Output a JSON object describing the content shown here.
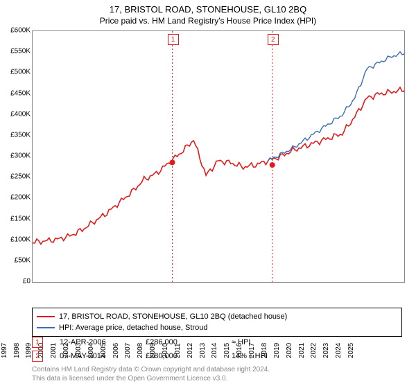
{
  "title": "17, BRISTOL ROAD, STONEHOUSE, GL10 2BQ",
  "subtitle": "Price paid vs. HM Land Registry's House Price Index (HPI)",
  "chart": {
    "type": "line",
    "background_color": "#ffffff",
    "border_color": "#888888",
    "x_categories": [
      "1995",
      "1996",
      "1997",
      "1998",
      "1999",
      "2000",
      "2001",
      "2002",
      "2003",
      "2004",
      "2005",
      "2006",
      "2007",
      "2008",
      "2009",
      "2010",
      "2011",
      "2012",
      "2013",
      "2014",
      "2015",
      "2016",
      "2017",
      "2018",
      "2019",
      "2020",
      "2021",
      "2022",
      "2023",
      "2024",
      "2025"
    ],
    "ylim": [
      0,
      600000
    ],
    "ytick_step": 50000,
    "ytick_labels": [
      "£0",
      "£50K",
      "£100K",
      "£150K",
      "£200K",
      "£250K",
      "£300K",
      "£350K",
      "£400K",
      "£450K",
      "£500K",
      "£550K",
      "£600K"
    ],
    "label_fontsize": 10,
    "title_fontsize": 13,
    "series": [
      {
        "name": "17, BRISTOL ROAD, STONEHOUSE, GL10 2BQ (detached house)",
        "color": "#e31a1c",
        "line_width": 1.6,
        "data_yearly": [
          95,
          98,
          102,
          110,
          125,
          145,
          165,
          190,
          215,
          245,
          260,
          285,
          310,
          340,
          255,
          290,
          285,
          275,
          280,
          290,
          300,
          315,
          325,
          335,
          345,
          355,
          395,
          440,
          450,
          455,
          460
        ]
      },
      {
        "name": "HPI: Average price, detached house, Stroud",
        "color": "#3b6db3",
        "line_width": 1.4,
        "data_yearly": [
          null,
          null,
          null,
          null,
          null,
          null,
          null,
          null,
          null,
          null,
          null,
          null,
          null,
          null,
          null,
          null,
          null,
          null,
          null,
          290,
          305,
          320,
          340,
          360,
          380,
          400,
          440,
          510,
          525,
          540,
          548
        ]
      }
    ],
    "markers": [
      {
        "label": "1",
        "x_year": 2006.28,
        "y_value": 286000,
        "date": "12-APR-2006",
        "price": "£286,000",
        "delta": "≈ HPI"
      },
      {
        "label": "2",
        "x_year": 2014.35,
        "y_value": 280000,
        "date": "07-MAY-2014",
        "price": "£280,000",
        "delta": "14% ↓ HPI"
      }
    ],
    "marker_dot_color": "#e31a1c",
    "marker_line_color": "#e31a1c",
    "marker_line_dash": "2,3"
  },
  "legend": {
    "item1": "17, BRISTOL ROAD, STONEHOUSE, GL10 2BQ (detached house)",
    "item2": "HPI: Average price, detached house, Stroud"
  },
  "annotations": {
    "r1_label": "1",
    "r1_date": "12-APR-2006",
    "r1_price": "£286,000",
    "r1_delta": "≈ HPI",
    "r2_label": "2",
    "r2_date": "07-MAY-2014",
    "r2_price": "£280,000",
    "r2_delta": "14% ↓ HPI"
  },
  "footnote_line1": "Contains HM Land Registry data © Crown copyright and database right 2024.",
  "footnote_line2": "This data is licensed under the Open Government Licence v3.0."
}
